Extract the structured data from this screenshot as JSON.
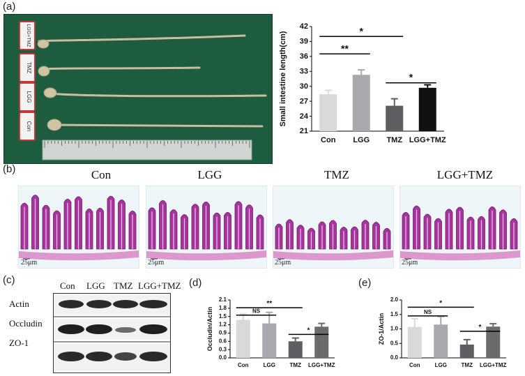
{
  "panels": {
    "a": "(a)",
    "b": "(b)",
    "c": "(c)",
    "d": "(d)",
    "e": "(e)"
  },
  "photo": {
    "tags": [
      "LGG+TMZ",
      "TMZ",
      "LGG",
      "Con"
    ]
  },
  "histology": {
    "titles": [
      "Con",
      "LGG",
      "TMZ",
      "LGG+TMZ"
    ],
    "scale_label": "25μm"
  },
  "western": {
    "lanes": [
      "Con",
      "LGG",
      "TMZ",
      "LGG+TMZ"
    ],
    "rows": [
      "Actin",
      "Occludin",
      "ZO-1"
    ]
  },
  "colors": {
    "con": "#d9d9d9",
    "lgg": "#a8a8ae",
    "tmz": "#5f5f63",
    "lgg_tmz_a": "#111111",
    "lgg_tmz_de": "#6b6b6b"
  },
  "chart_data": [
    {
      "id": "a",
      "type": "bar",
      "categories": [
        "Con",
        "LGG",
        "TMZ",
        "LGG+TMZ"
      ],
      "values": [
        28.4,
        32.3,
        26.1,
        29.7
      ],
      "errors": [
        0.8,
        1.0,
        1.4,
        0.6
      ],
      "ylabel": "Small intestine length(cm)",
      "xlabel": "",
      "ylim": [
        21,
        42
      ],
      "yticks": [
        "21",
        "24",
        "27",
        "30",
        "33",
        "36",
        "39",
        "42"
      ],
      "significance": [
        {
          "from": 0,
          "to": 2,
          "label": "*"
        },
        {
          "from": 0,
          "to": 1,
          "label": "**"
        },
        {
          "from": 2,
          "to": 3,
          "label": "*"
        }
      ]
    },
    {
      "id": "d",
      "type": "bar",
      "categories": [
        "Con",
        "LGG",
        "TMZ",
        "LGG+TMZ"
      ],
      "values": [
        1.38,
        1.25,
        0.6,
        1.13
      ],
      "errors": [
        0.22,
        0.4,
        0.12,
        0.12
      ],
      "ylabel": "Occludin/Actin",
      "xlabel": "",
      "ylim": [
        0,
        2.1
      ],
      "yticks": [
        "0.0",
        "0.3",
        "0.6",
        "0.9",
        "1.2",
        "1.5",
        "1.8",
        "2.1"
      ],
      "significance": [
        {
          "from": 0,
          "to": 2,
          "label": "**"
        },
        {
          "from": 0,
          "to": 1,
          "label": "NS"
        },
        {
          "from": 2,
          "to": 3,
          "label": "*"
        }
      ]
    },
    {
      "id": "e",
      "type": "bar",
      "categories": [
        "Con",
        "LGG",
        "TMZ",
        "LGG+TMZ"
      ],
      "values": [
        1.07,
        1.15,
        0.46,
        1.08
      ],
      "errors": [
        0.28,
        0.28,
        0.17,
        0.1
      ],
      "ylabel": "ZO-1/Actin",
      "xlabel": "",
      "ylim": [
        0,
        2.0
      ],
      "yticks": [
        "0.0",
        "0.5",
        "1.0",
        "1.5",
        "2.0"
      ],
      "significance": [
        {
          "from": 0,
          "to": 2,
          "label": "*"
        },
        {
          "from": 0,
          "to": 1,
          "label": "NS"
        },
        {
          "from": 2,
          "to": 3,
          "label": "*"
        }
      ]
    }
  ]
}
